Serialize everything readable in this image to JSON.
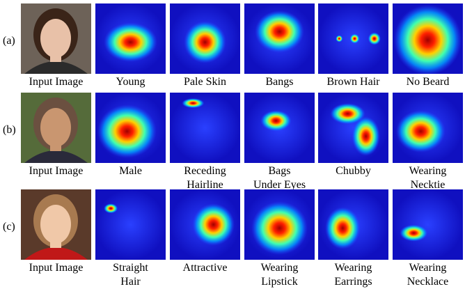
{
  "rows": [
    {
      "label": "(a)",
      "captions": [
        [
          "Input Image"
        ],
        [
          "Young"
        ],
        [
          "Pale Skin"
        ],
        [
          "Bangs"
        ],
        [
          "Brown Hair"
        ],
        [
          "No Beard"
        ]
      ]
    },
    {
      "label": "(b)",
      "captions": [
        [
          "Input Image"
        ],
        [
          "Male"
        ],
        [
          "Receding",
          "Hairline"
        ],
        [
          "Bags",
          "Under Eyes"
        ],
        [
          "Chubby"
        ],
        [
          "Wearing",
          "Necktie"
        ]
      ]
    },
    {
      "label": "(c)",
      "captions": [
        [
          "Input Image"
        ],
        [
          "Straight",
          "Hair"
        ],
        [
          "Attractive"
        ],
        [
          "Wearing",
          "Lipstick"
        ],
        [
          "Wearing",
          "Earrings"
        ],
        [
          "Wearing",
          "Necklace"
        ]
      ]
    }
  ]
}
